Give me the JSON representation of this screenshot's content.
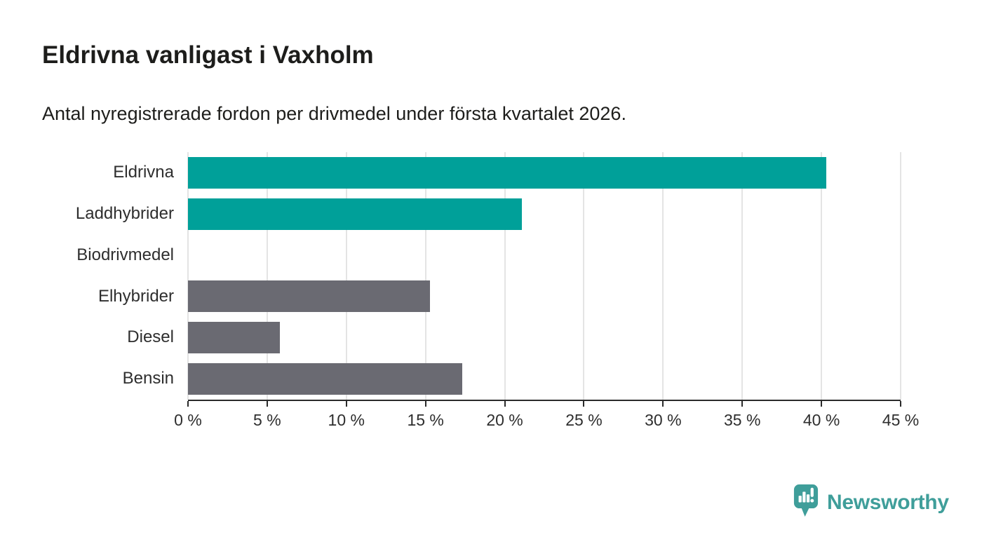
{
  "title": "Eldrivna vanligast i Vaxholm",
  "subtitle": "Antal nyregistrerade fordon per drivmedel under första kvartalet 2026.",
  "chart_data": {
    "type": "bar",
    "orientation": "horizontal",
    "title": "Eldrivna vanligast i Vaxholm",
    "subtitle": "Antal nyregistrerade fordon per drivmedel under första kvartalet 2026.",
    "categories": [
      "Eldrivna",
      "Laddhybrider",
      "Biodrivmedel",
      "Elhybrider",
      "Diesel",
      "Bensin"
    ],
    "values": [
      40.3,
      21.1,
      0,
      15.3,
      5.8,
      17.3
    ],
    "unit": "%",
    "bar_colors": [
      "#00a099",
      "#00a099",
      "#00a099",
      "#6a6a72",
      "#6a6a72",
      "#6a6a72"
    ],
    "xlim": [
      0,
      45
    ],
    "x_ticks": [
      0,
      5,
      10,
      15,
      20,
      25,
      30,
      35,
      40,
      45
    ],
    "x_tick_labels": [
      "0 %",
      "5 %",
      "10 %",
      "15 %",
      "20 %",
      "25 %",
      "30 %",
      "35 %",
      "40 %",
      "45 %"
    ],
    "xlabel": "",
    "ylabel": "",
    "grid": true,
    "gridlines": "vertical",
    "legend": "none"
  },
  "colors": {
    "highlight_bar": "#00a099",
    "default_bar": "#6a6a72",
    "gridline": "#e4e4e4",
    "axis": "#2b2b2b",
    "text": "#1d1d1b",
    "brand_teal": "#3f9e9a"
  },
  "brand": {
    "wordmark": "Newsworthy"
  }
}
